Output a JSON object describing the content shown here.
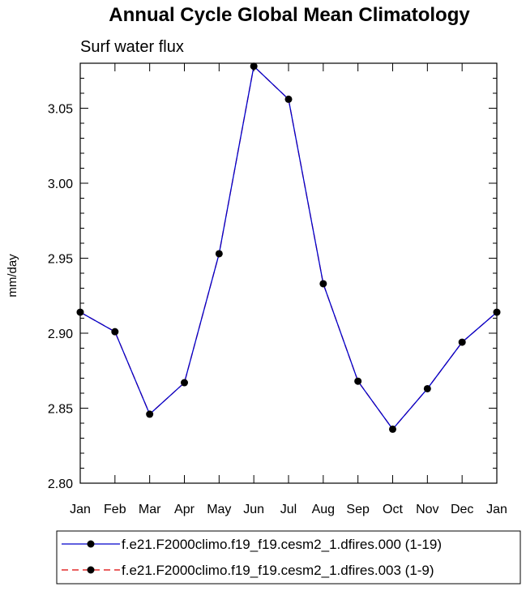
{
  "chart_data": {
    "type": "line",
    "title": "Annual Cycle Global Mean Climatology",
    "subtitle": "Surf water flux",
    "xlabel": "",
    "ylabel": "mm/day",
    "categories": [
      "Jan",
      "Feb",
      "Mar",
      "Apr",
      "May",
      "Jun",
      "Jul",
      "Aug",
      "Sep",
      "Oct",
      "Nov",
      "Dec",
      "Jan"
    ],
    "ylim": [
      2.8,
      3.08
    ],
    "yticks": [
      2.8,
      2.85,
      2.9,
      2.95,
      3.0,
      3.05
    ],
    "ytick_labels": [
      "2.80",
      "2.85",
      "2.90",
      "2.95",
      "3.00",
      "3.05"
    ],
    "grid": false,
    "legend_position": "bottom",
    "series": [
      {
        "name": "f.e21.F2000climo.f19_f19.cesm2_1.dfires.000 (1-19)",
        "color": "#0000cc",
        "dash": "solid",
        "values": [
          2.914,
          2.901,
          2.846,
          2.867,
          2.953,
          3.078,
          3.056,
          2.933,
          2.868,
          2.836,
          2.863,
          2.894,
          2.914
        ]
      },
      {
        "name": "f.e21.F2000climo.f19_f19.cesm2_1.dfires.003 (1-9)",
        "color": "#dd0000",
        "dash": "dashed",
        "values": [
          2.914,
          2.901,
          2.846,
          2.867,
          2.953,
          3.078,
          3.056,
          2.933,
          2.868,
          2.836,
          2.863,
          2.894,
          2.914
        ]
      }
    ]
  }
}
